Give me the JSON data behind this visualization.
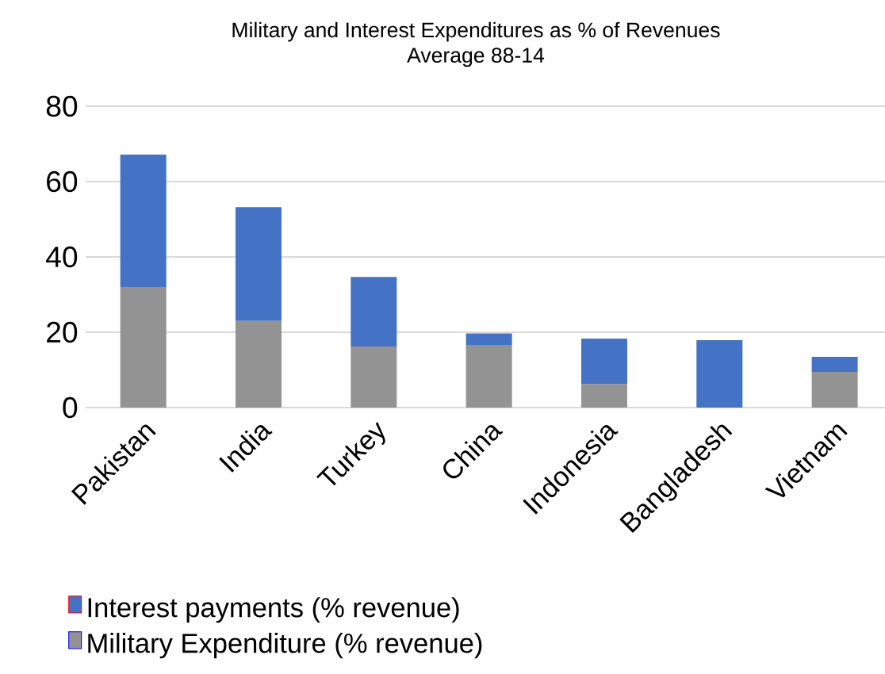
{
  "chart_data": {
    "type": "bar",
    "stacked": true,
    "title": "Military and Interest Expenditures as % of Revenues",
    "subtitle": "Average 88-14",
    "categories": [
      "Pakistan",
      "India",
      "Turkey",
      "China",
      "Indonesia",
      "Bangladesh",
      "Vietnam"
    ],
    "series": [
      {
        "name": "Military Expenditure (% revenue)",
        "color": "#939393",
        "values": [
          32,
          23,
          16.2,
          16.5,
          6.2,
          0,
          9.5
        ]
      },
      {
        "name": "Interest payments (% revenue)",
        "color": "#4472c4",
        "values": [
          35.2,
          30.2,
          18.5,
          3.2,
          12.1,
          17.9,
          4.0
        ]
      }
    ],
    "ylim": [
      0,
      80
    ],
    "yticks": [
      0,
      20,
      40,
      60,
      80
    ],
    "grid": "y",
    "legend": "bottom"
  }
}
